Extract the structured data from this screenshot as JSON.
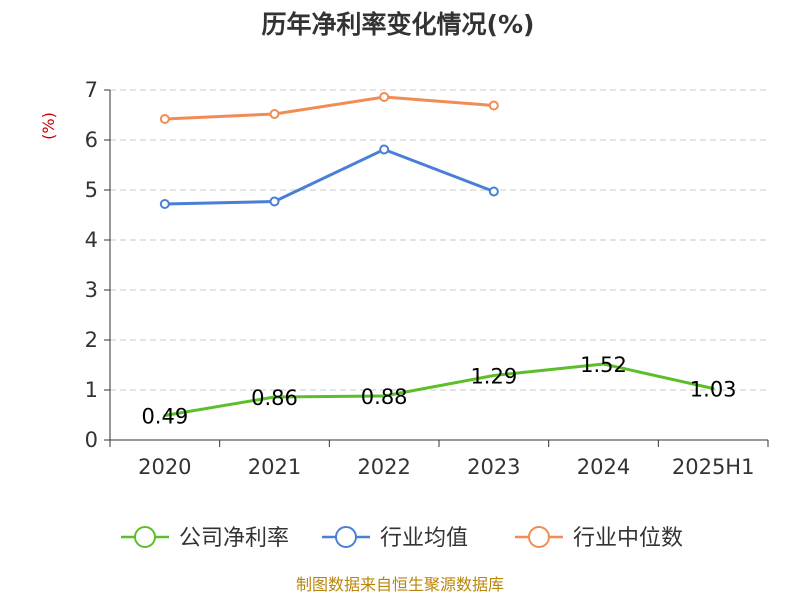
{
  "chart_data": {
    "type": "line",
    "title": "历年净利率变化情况(%)",
    "ylabel": "(%)",
    "categories": [
      "2020",
      "2021",
      "2022",
      "2023",
      "2024",
      "2025H1"
    ],
    "ylim": [
      0,
      7
    ],
    "yticks": [
      "0",
      "1",
      "2",
      "3",
      "4",
      "5",
      "6",
      "7"
    ],
    "grid": true,
    "legend_position": "bottom",
    "series": [
      {
        "name": "公司净利率",
        "color": "#5cbf2a",
        "values": [
          0.49,
          0.86,
          0.88,
          1.29,
          1.52,
          1.03
        ],
        "labels": [
          "0.49",
          "0.86",
          "0.88",
          "1.29",
          "1.52",
          "1.03"
        ],
        "markers": false
      },
      {
        "name": "行业均值",
        "color": "#4a7fd6",
        "values": [
          4.72,
          4.77,
          5.81,
          4.97,
          null,
          null
        ],
        "markers": true
      },
      {
        "name": "行业中位数",
        "color": "#f28c55",
        "values": [
          6.42,
          6.52,
          6.86,
          6.69,
          null,
          null
        ],
        "markers": true
      }
    ]
  },
  "source": "制图数据来自恒生聚源数据库"
}
